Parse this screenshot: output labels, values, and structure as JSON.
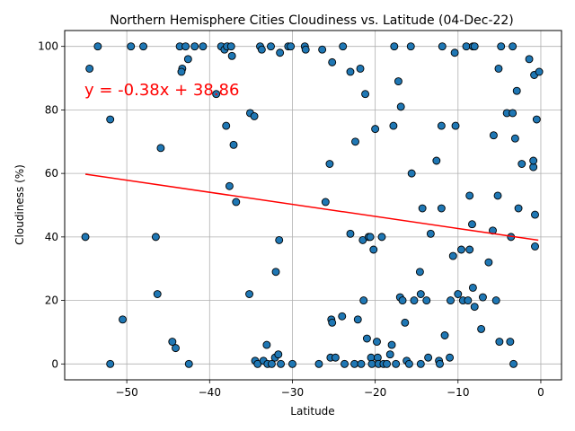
{
  "chart_data": {
    "type": "scatter",
    "title": "Northern Hemisphere Cities Cloudiness vs. Latitude (04-Dec-22)",
    "xlabel": "Latitude",
    "ylabel": "Cloudiness (%)",
    "xlim": [
      -57.5,
      2.5
    ],
    "ylim": [
      -5,
      105
    ],
    "xticks": [
      -50,
      -40,
      -30,
      -20,
      -10,
      0
    ],
    "yticks": [
      0,
      20,
      40,
      60,
      80,
      100
    ],
    "grid": true,
    "point_color": "#1f77b4",
    "point_edge": "#000000",
    "regression": {
      "equation": "y = -0.38x + 38.86",
      "slope": -0.38,
      "intercept": 38.86,
      "x_range": [
        -55,
        -0.3
      ],
      "color": "#ff0000"
    },
    "points": [
      [
        -55,
        40
      ],
      [
        -54.5,
        93
      ],
      [
        -53.5,
        100
      ],
      [
        -52,
        0
      ],
      [
        -52,
        77
      ],
      [
        -50.5,
        14
      ],
      [
        -49.5,
        100
      ],
      [
        -48,
        100
      ],
      [
        -46.5,
        40
      ],
      [
        -46.3,
        22
      ],
      [
        -45.9,
        68
      ],
      [
        -44.5,
        7
      ],
      [
        -44.1,
        5
      ],
      [
        -43.6,
        100
      ],
      [
        -43.3,
        93
      ],
      [
        -43.4,
        92
      ],
      [
        -42.9,
        100
      ],
      [
        -42.6,
        96
      ],
      [
        -42.5,
        0
      ],
      [
        -41.8,
        100
      ],
      [
        -40.8,
        100
      ],
      [
        -39.2,
        85
      ],
      [
        -38.6,
        100
      ],
      [
        -38.2,
        99
      ],
      [
        -37.9,
        100
      ],
      [
        -38,
        75
      ],
      [
        -37.6,
        56
      ],
      [
        -37.4,
        100
      ],
      [
        -37.3,
        97
      ],
      [
        -37.1,
        69
      ],
      [
        -36.8,
        51
      ],
      [
        -35.2,
        22
      ],
      [
        -35.1,
        79
      ],
      [
        -34.6,
        78
      ],
      [
        -34.5,
        1
      ],
      [
        -34.2,
        0
      ],
      [
        -33.9,
        100
      ],
      [
        -33.7,
        99
      ],
      [
        -33.5,
        1
      ],
      [
        -33.1,
        6
      ],
      [
        -33,
        0
      ],
      [
        -32.6,
        100
      ],
      [
        -32.5,
        0
      ],
      [
        -32.1,
        2
      ],
      [
        -32,
        29
      ],
      [
        -31.7,
        3
      ],
      [
        -31.6,
        39
      ],
      [
        -31.5,
        98
      ],
      [
        -31.4,
        0
      ],
      [
        -30.5,
        100
      ],
      [
        -30.2,
        100
      ],
      [
        -30,
        0
      ],
      [
        -28.5,
        100
      ],
      [
        -28.4,
        99
      ],
      [
        -26.8,
        0
      ],
      [
        -26.4,
        99
      ],
      [
        -26,
        51
      ],
      [
        -25.5,
        63
      ],
      [
        -25.3,
        14
      ],
      [
        -25.4,
        2
      ],
      [
        -25.2,
        95
      ],
      [
        -25.2,
        13
      ],
      [
        -24.8,
        2
      ],
      [
        -24,
        15
      ],
      [
        -23.9,
        100
      ],
      [
        -23.7,
        0
      ],
      [
        -23,
        41
      ],
      [
        -23,
        92
      ],
      [
        -22.5,
        0
      ],
      [
        -22.4,
        70
      ],
      [
        -22.1,
        14
      ],
      [
        -21.8,
        93
      ],
      [
        -21.7,
        0
      ],
      [
        -21.5,
        39
      ],
      [
        -21.4,
        20
      ],
      [
        -21.2,
        85
      ],
      [
        -21,
        8
      ],
      [
        -20.8,
        40
      ],
      [
        -20.6,
        40
      ],
      [
        -20.5,
        2
      ],
      [
        -20.4,
        0
      ],
      [
        -20.2,
        36
      ],
      [
        -20,
        74
      ],
      [
        -19.8,
        7
      ],
      [
        -19.7,
        2
      ],
      [
        -19.6,
        0
      ],
      [
        -19.2,
        40
      ],
      [
        -19,
        0
      ],
      [
        -18.6,
        0
      ],
      [
        -18.2,
        3
      ],
      [
        -18,
        6
      ],
      [
        -17.8,
        75
      ],
      [
        -17.7,
        100
      ],
      [
        -17.5,
        0
      ],
      [
        -17.2,
        89
      ],
      [
        -17,
        21
      ],
      [
        -16.9,
        81
      ],
      [
        -16.7,
        20
      ],
      [
        -16.4,
        13
      ],
      [
        -16.2,
        1
      ],
      [
        -15.9,
        0
      ],
      [
        -15.7,
        100
      ],
      [
        -15.6,
        60
      ],
      [
        -15.3,
        20
      ],
      [
        -14.6,
        29
      ],
      [
        -14.5,
        22
      ],
      [
        -14.5,
        0
      ],
      [
        -14.3,
        49
      ],
      [
        -13.8,
        20
      ],
      [
        -13.6,
        2
      ],
      [
        -13.3,
        41
      ],
      [
        -12.6,
        64
      ],
      [
        -12.3,
        1
      ],
      [
        -12.2,
        0
      ],
      [
        -12,
        49
      ],
      [
        -12,
        75
      ],
      [
        -11.9,
        100
      ],
      [
        -11.6,
        9
      ],
      [
        -11,
        2
      ],
      [
        -10.9,
        20
      ],
      [
        -10.6,
        34
      ],
      [
        -10.4,
        98
      ],
      [
        -10.3,
        75
      ],
      [
        -10,
        22
      ],
      [
        -9.6,
        36
      ],
      [
        -9.4,
        20
      ],
      [
        -9,
        100
      ],
      [
        -8.8,
        20
      ],
      [
        -8.6,
        53
      ],
      [
        -8.6,
        36
      ],
      [
        -8.3,
        44
      ],
      [
        -8.2,
        24
      ],
      [
        -8.2,
        100
      ],
      [
        -8,
        100
      ],
      [
        -8,
        18
      ],
      [
        -7.2,
        11
      ],
      [
        -7,
        21
      ],
      [
        -6.3,
        32
      ],
      [
        -5.8,
        42
      ],
      [
        -5.7,
        72
      ],
      [
        -5.4,
        20
      ],
      [
        -5.2,
        53
      ],
      [
        -5.1,
        93
      ],
      [
        -5,
        7
      ],
      [
        -4.8,
        100
      ],
      [
        -4.1,
        79
      ],
      [
        -3.7,
        7
      ],
      [
        -3.6,
        40
      ],
      [
        -3.4,
        100
      ],
      [
        -3.4,
        79
      ],
      [
        -3.3,
        0
      ],
      [
        -3.1,
        71
      ],
      [
        -2.9,
        86
      ],
      [
        -2.7,
        49
      ],
      [
        -2.3,
        63
      ],
      [
        -1.4,
        96
      ],
      [
        -0.9,
        62
      ],
      [
        -0.9,
        64
      ],
      [
        -0.8,
        91
      ],
      [
        -0.7,
        37
      ],
      [
        -0.7,
        47
      ],
      [
        -0.5,
        77
      ],
      [
        -0.2,
        92
      ]
    ]
  }
}
